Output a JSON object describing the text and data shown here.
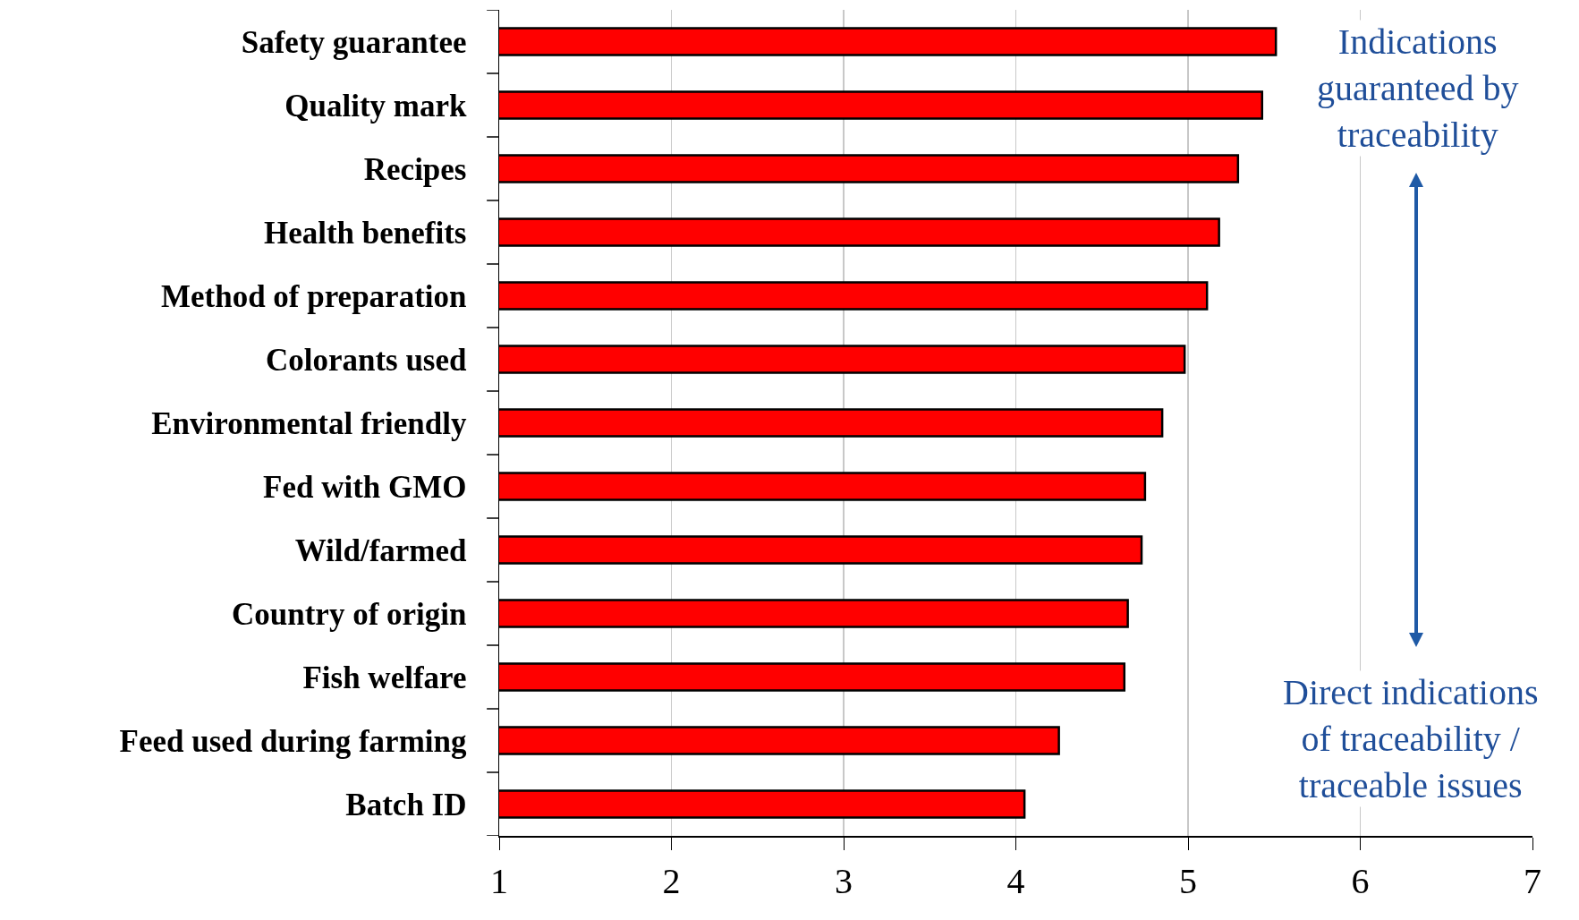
{
  "chart_data": {
    "type": "bar",
    "orientation": "horizontal",
    "categories": [
      "Safety guarantee",
      "Quality mark",
      "Recipes",
      "Health benefits",
      "Method of preparation",
      "Colorants used",
      "Environmental friendly",
      "Fed with GMO",
      "Wild/farmed",
      "Country of origin",
      "Fish welfare",
      "Feed used during farming",
      "Batch ID"
    ],
    "values": [
      5.51,
      5.43,
      5.29,
      5.18,
      5.11,
      4.98,
      4.85,
      4.75,
      4.73,
      4.65,
      4.63,
      4.25,
      4.05
    ],
    "color": "#ff0000",
    "xlim": [
      1,
      7
    ],
    "xticks": [
      1,
      2,
      3,
      4,
      5,
      6,
      7
    ],
    "grid": "x",
    "legend": false,
    "annotations": [
      "Indications\nguaranteed by\ntraceability",
      "Direct indications\nof traceability /\ntraceable issues"
    ]
  }
}
